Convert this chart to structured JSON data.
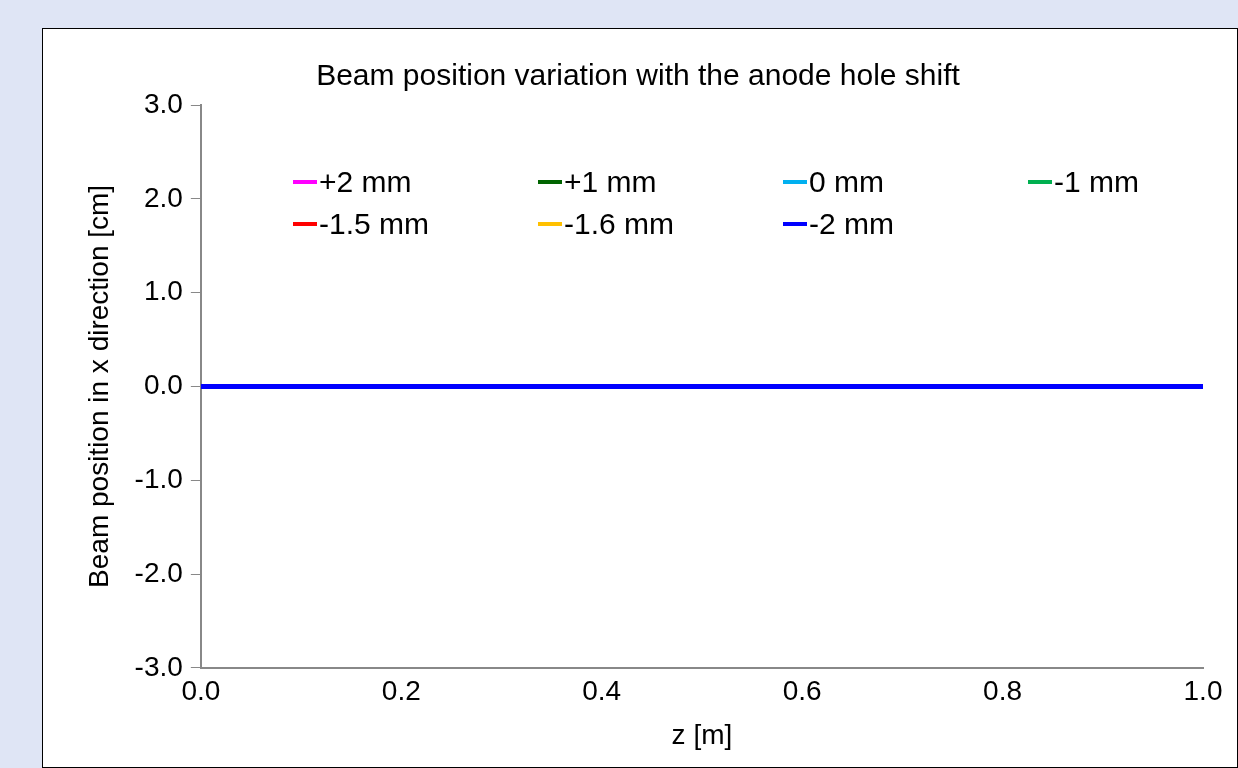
{
  "chart_data": {
    "type": "line",
    "title": "Beam position variation with the anode hole shift",
    "xlabel": "z [m]",
    "ylabel": "Beam position in x direction [cm]",
    "xlim": [
      0,
      1
    ],
    "xticks": [
      {
        "value": 0,
        "label": "0.0"
      },
      {
        "value": 0.2,
        "label": "0.2"
      },
      {
        "value": 0.4,
        "label": "0.4"
      },
      {
        "value": 0.6,
        "label": "0.6"
      },
      {
        "value": 0.8,
        "label": "0.8"
      },
      {
        "value": 1,
        "label": "1.0"
      }
    ],
    "ylim": [
      -3,
      3
    ],
    "yticks": [
      {
        "value": -3,
        "label": "-3.0"
      },
      {
        "value": -2,
        "label": "-2.0"
      },
      {
        "value": -1,
        "label": "-1.0"
      },
      {
        "value": 0,
        "label": "0.0"
      },
      {
        "value": 1,
        "label": "1.0"
      },
      {
        "value": 2,
        "label": "2.0"
      },
      {
        "value": 3,
        "label": "3.0"
      }
    ],
    "grid": false,
    "legend": "top",
    "marker": "none",
    "line_style": "solid",
    "x": [
      0,
      1
    ],
    "series": [
      {
        "name": "+2 mm",
        "color": "#ff00ff",
        "values": [
          null,
          null
        ]
      },
      {
        "name": "+1 mm",
        "color": "#006400",
        "values": [
          null,
          null
        ]
      },
      {
        "name": "0 mm",
        "color": "#00b0f0",
        "values": [
          null,
          null
        ]
      },
      {
        "name": "-1 mm",
        "color": "#00b050",
        "values": [
          null,
          null
        ]
      },
      {
        "name": "-1.5 mm",
        "color": "#ff0000",
        "values": [
          null,
          null
        ]
      },
      {
        "name": "-1.6 mm",
        "color": "#ffc000",
        "values": [
          null,
          null
        ]
      },
      {
        "name": "-2 mm",
        "color": "#0000ff",
        "values": [
          0,
          0
        ]
      }
    ]
  }
}
